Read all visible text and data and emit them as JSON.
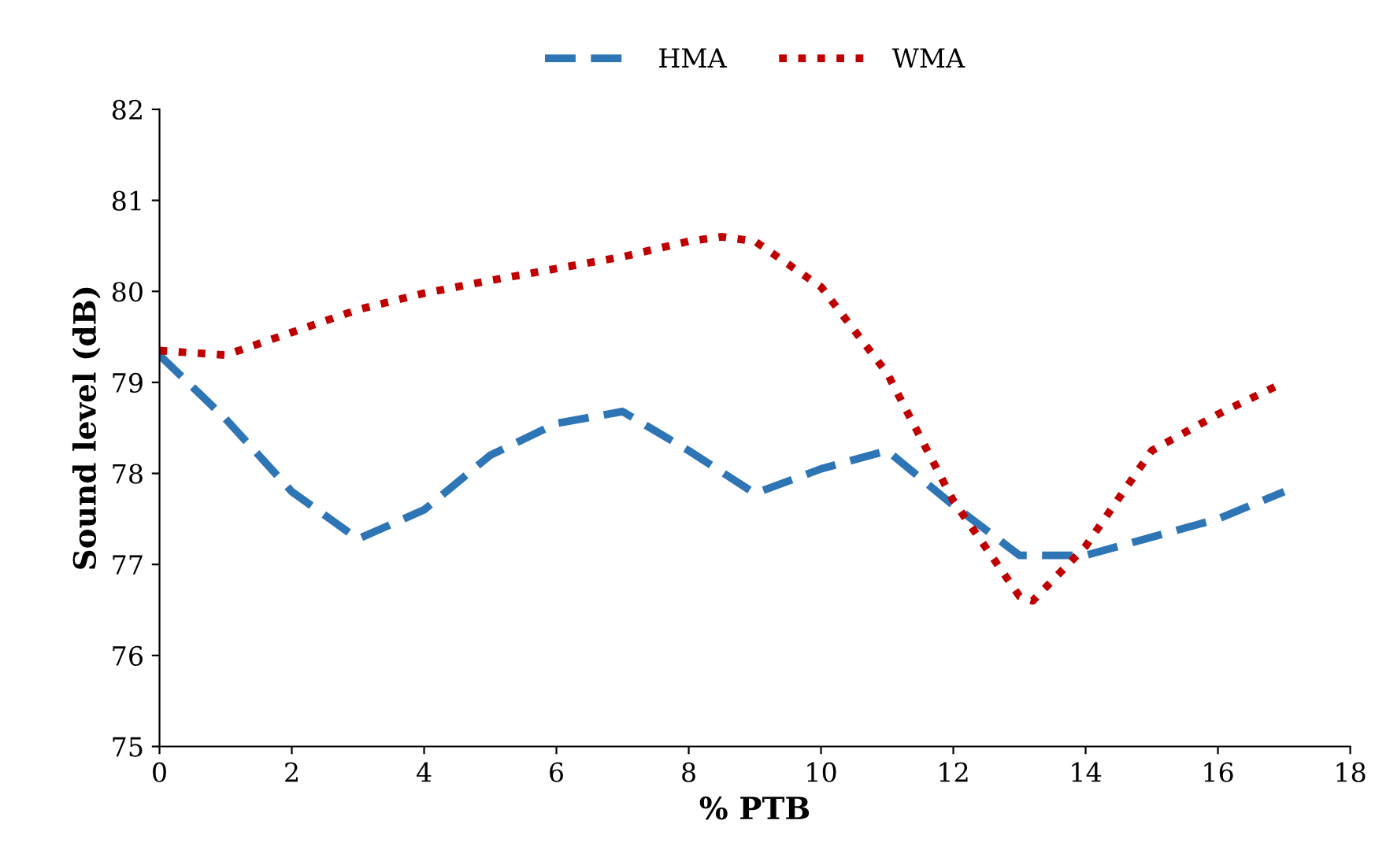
{
  "chart_data": {
    "type": "line",
    "xlabel": "% PTB",
    "ylabel": "Sound level (dB)",
    "xlim": [
      0,
      18
    ],
    "xticks": [
      0,
      2,
      4,
      6,
      8,
      10,
      12,
      14,
      16,
      18
    ],
    "ylim": [
      75,
      82
    ],
    "yticks": [
      75,
      76,
      77,
      78,
      79,
      80,
      81,
      82
    ],
    "grid": false,
    "legend": "top",
    "marker": "none",
    "series": [
      {
        "name": "HMA",
        "color": "#2e75b6",
        "line_style": "dashed",
        "x": [
          0,
          1,
          2,
          3,
          4,
          5,
          6,
          7,
          8,
          9,
          10,
          11,
          12,
          13,
          14,
          15,
          16,
          17
        ],
        "values": [
          79.3,
          78.6,
          77.8,
          77.28,
          77.6,
          78.2,
          78.55,
          78.68,
          78.25,
          77.78,
          78.05,
          78.25,
          77.65,
          77.1,
          77.1,
          77.3,
          77.5,
          77.8
        ]
      },
      {
        "name": "WMA",
        "color": "#c00000",
        "line_style": "dotted",
        "x": [
          0,
          1,
          2,
          3,
          4,
          5,
          6,
          7,
          8,
          8.5,
          9,
          10,
          11,
          12,
          13,
          13.2,
          14,
          15,
          16,
          17
        ],
        "values": [
          79.35,
          79.3,
          79.55,
          79.8,
          79.98,
          80.12,
          80.25,
          80.38,
          80.55,
          80.6,
          80.55,
          80.05,
          79.1,
          77.7,
          76.65,
          76.6,
          77.2,
          78.25,
          78.65,
          79.0
        ]
      }
    ]
  }
}
